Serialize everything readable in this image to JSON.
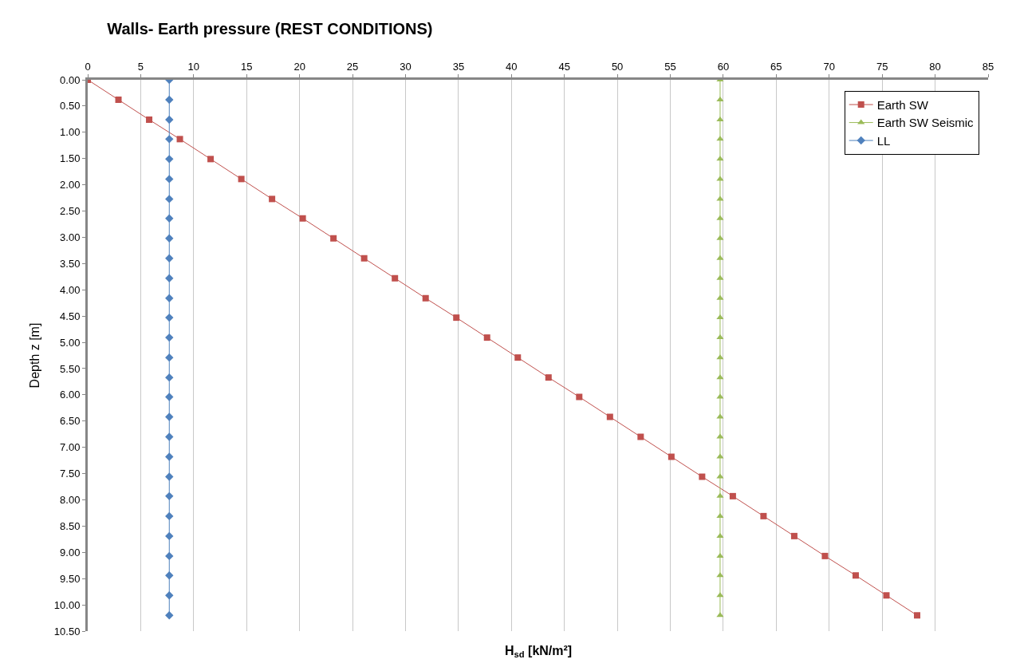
{
  "chart_data": {
    "type": "line",
    "title": "Walls- Earth pressure (REST CONDITIONS)",
    "xlabel": "H$_{sd}$ [kN/m²]",
    "ylabel": "Depth z [m]",
    "xlim": [
      0,
      85
    ],
    "xticks": [
      0,
      5,
      10,
      15,
      20,
      25,
      30,
      35,
      40,
      45,
      50,
      55,
      60,
      65,
      70,
      75,
      80,
      85
    ],
    "ylim": [
      10.5,
      0
    ],
    "yticks": [
      {
        "value": 0,
        "label": "0.00"
      },
      {
        "value": 0.5,
        "label": "0.50"
      },
      {
        "value": 1,
        "label": "1.00"
      },
      {
        "value": 1.5,
        "label": "1.50"
      },
      {
        "value": 2,
        "label": "2.00"
      },
      {
        "value": 2.5,
        "label": "2.50"
      },
      {
        "value": 3,
        "label": "3.00"
      },
      {
        "value": 3.5,
        "label": "3.50"
      },
      {
        "value": 4,
        "label": "4.00"
      },
      {
        "value": 4.5,
        "label": "4.50"
      },
      {
        "value": 5,
        "label": "5.00"
      },
      {
        "value": 5.5,
        "label": "5.50"
      },
      {
        "value": 6,
        "label": "6.00"
      },
      {
        "value": 6.5,
        "label": "6.50"
      },
      {
        "value": 7,
        "label": "7.00"
      },
      {
        "value": 7.5,
        "label": "7.50"
      },
      {
        "value": 8,
        "label": "8.00"
      },
      {
        "value": 8.5,
        "label": "8.50"
      },
      {
        "value": 9,
        "label": "9.00"
      },
      {
        "value": 9.5,
        "label": "9.50"
      },
      {
        "value": 10,
        "label": "10.00"
      },
      {
        "value": 10.5,
        "label": "10.50"
      }
    ],
    "grid": "x",
    "legend": "top right",
    "line_style": "solid",
    "series": [
      {
        "name": "Earth SW",
        "color": "#c0504d",
        "marker": "square",
        "x": [
          0,
          2.9,
          5.8,
          8.7,
          11.6,
          14.5,
          17.4,
          20.3,
          23.2,
          26.1,
          29.0,
          31.9,
          34.8,
          37.7,
          40.6,
          43.5,
          46.4,
          49.3,
          52.2,
          55.1,
          58.0,
          60.9,
          63.8,
          66.7,
          69.6,
          72.5,
          75.4,
          78.3
        ],
        "values": [
          0,
          0.38,
          0.76,
          1.13,
          1.51,
          1.89,
          2.27,
          2.64,
          3.02,
          3.4,
          3.78,
          4.16,
          4.53,
          4.91,
          5.29,
          5.67,
          6.04,
          6.42,
          6.8,
          7.18,
          7.56,
          7.93,
          8.31,
          8.69,
          9.07,
          9.44,
          9.82,
          10.2
        ]
      },
      {
        "name": "Earth SW Seismic",
        "color": "#9bbb59",
        "marker": "triangle",
        "x": [
          59.7,
          59.7,
          59.7,
          59.7,
          59.7,
          59.7,
          59.7,
          59.7,
          59.7,
          59.7,
          59.7,
          59.7,
          59.7,
          59.7,
          59.7,
          59.7,
          59.7,
          59.7,
          59.7,
          59.7,
          59.7,
          59.7,
          59.7,
          59.7,
          59.7,
          59.7,
          59.7,
          59.7
        ],
        "values": [
          0,
          0.38,
          0.76,
          1.13,
          1.51,
          1.89,
          2.27,
          2.64,
          3.02,
          3.4,
          3.78,
          4.16,
          4.53,
          4.91,
          5.29,
          5.67,
          6.04,
          6.42,
          6.8,
          7.18,
          7.56,
          7.93,
          8.31,
          8.69,
          9.07,
          9.44,
          9.82,
          10.2
        ]
      },
      {
        "name": "LL",
        "color": "#4f81bd",
        "marker": "diamond",
        "x": [
          7.7,
          7.7,
          7.7,
          7.7,
          7.7,
          7.7,
          7.7,
          7.7,
          7.7,
          7.7,
          7.7,
          7.7,
          7.7,
          7.7,
          7.7,
          7.7,
          7.7,
          7.7,
          7.7,
          7.7,
          7.7,
          7.7,
          7.7,
          7.7,
          7.7,
          7.7,
          7.7,
          7.7
        ],
        "values": [
          0,
          0.38,
          0.76,
          1.13,
          1.51,
          1.89,
          2.27,
          2.64,
          3.02,
          3.4,
          3.78,
          4.16,
          4.53,
          4.91,
          5.29,
          5.67,
          6.04,
          6.42,
          6.8,
          7.18,
          7.56,
          7.93,
          8.31,
          8.69,
          9.07,
          9.44,
          9.82,
          10.2
        ]
      }
    ]
  }
}
